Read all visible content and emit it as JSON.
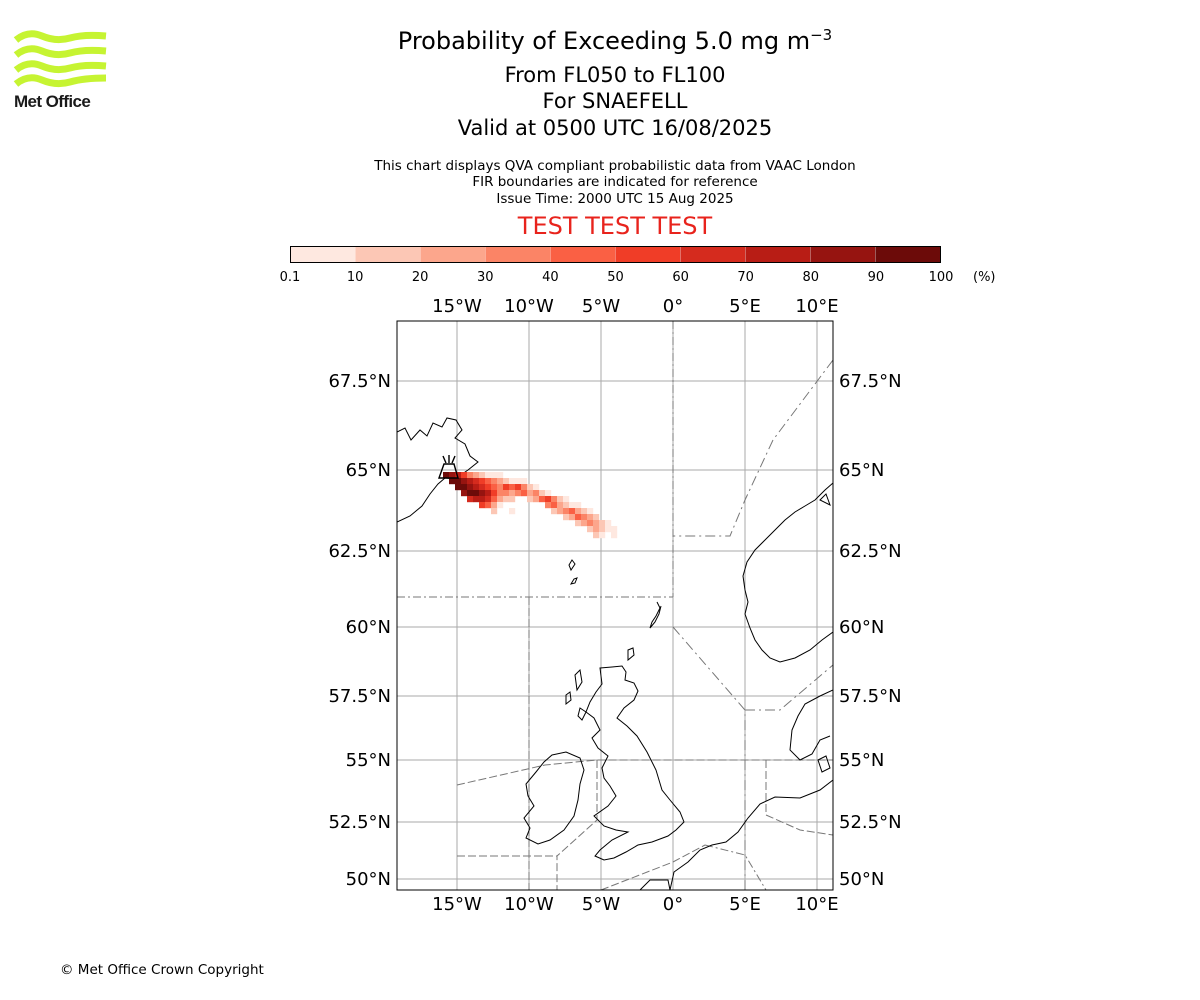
{
  "brand": {
    "logo_text": "Met Office",
    "logo_color": "#c6f432"
  },
  "header": {
    "title": "Probability of Exceeding 5.0 mg m",
    "title_exponent": "−3",
    "level_range": "From FL050 to FL100",
    "volcano": "For SNAEFELL",
    "valid_time": "Valid at 0500 UTC 16/08/2025",
    "note_line1": "This chart displays QVA compliant probabilistic data from VAAC London",
    "note_line2": "FIR boundaries are indicated for reference",
    "issue_time": "Issue Time: 2000 UTC 15 Aug 2025",
    "test_banner": "TEST TEST TEST"
  },
  "colorbar": {
    "ticks": [
      "0.1",
      "10",
      "20",
      "30",
      "40",
      "50",
      "60",
      "70",
      "80",
      "90",
      "100"
    ],
    "unit": "(%)",
    "colors": [
      "#fee8e0",
      "#fcc7b5",
      "#fca68c",
      "#fb8466",
      "#fa6044",
      "#f03d27",
      "#d52b1e",
      "#b81d15",
      "#961410",
      "#6c0b09"
    ]
  },
  "map": {
    "lon_labels": [
      "15°W",
      "10°W",
      "5°W",
      "0°",
      "5°E",
      "10°E"
    ],
    "lat_labels": [
      "67.5°N",
      "65°N",
      "62.5°N",
      "60°N",
      "57.5°N",
      "55°N",
      "52.5°N",
      "50°N"
    ],
    "gridline_color": "#aaaaaa",
    "fir_color": "#777777",
    "volcano_icon": "volcano-icon"
  },
  "footer": {
    "copyright": "© Met Office Crown Copyright"
  }
}
